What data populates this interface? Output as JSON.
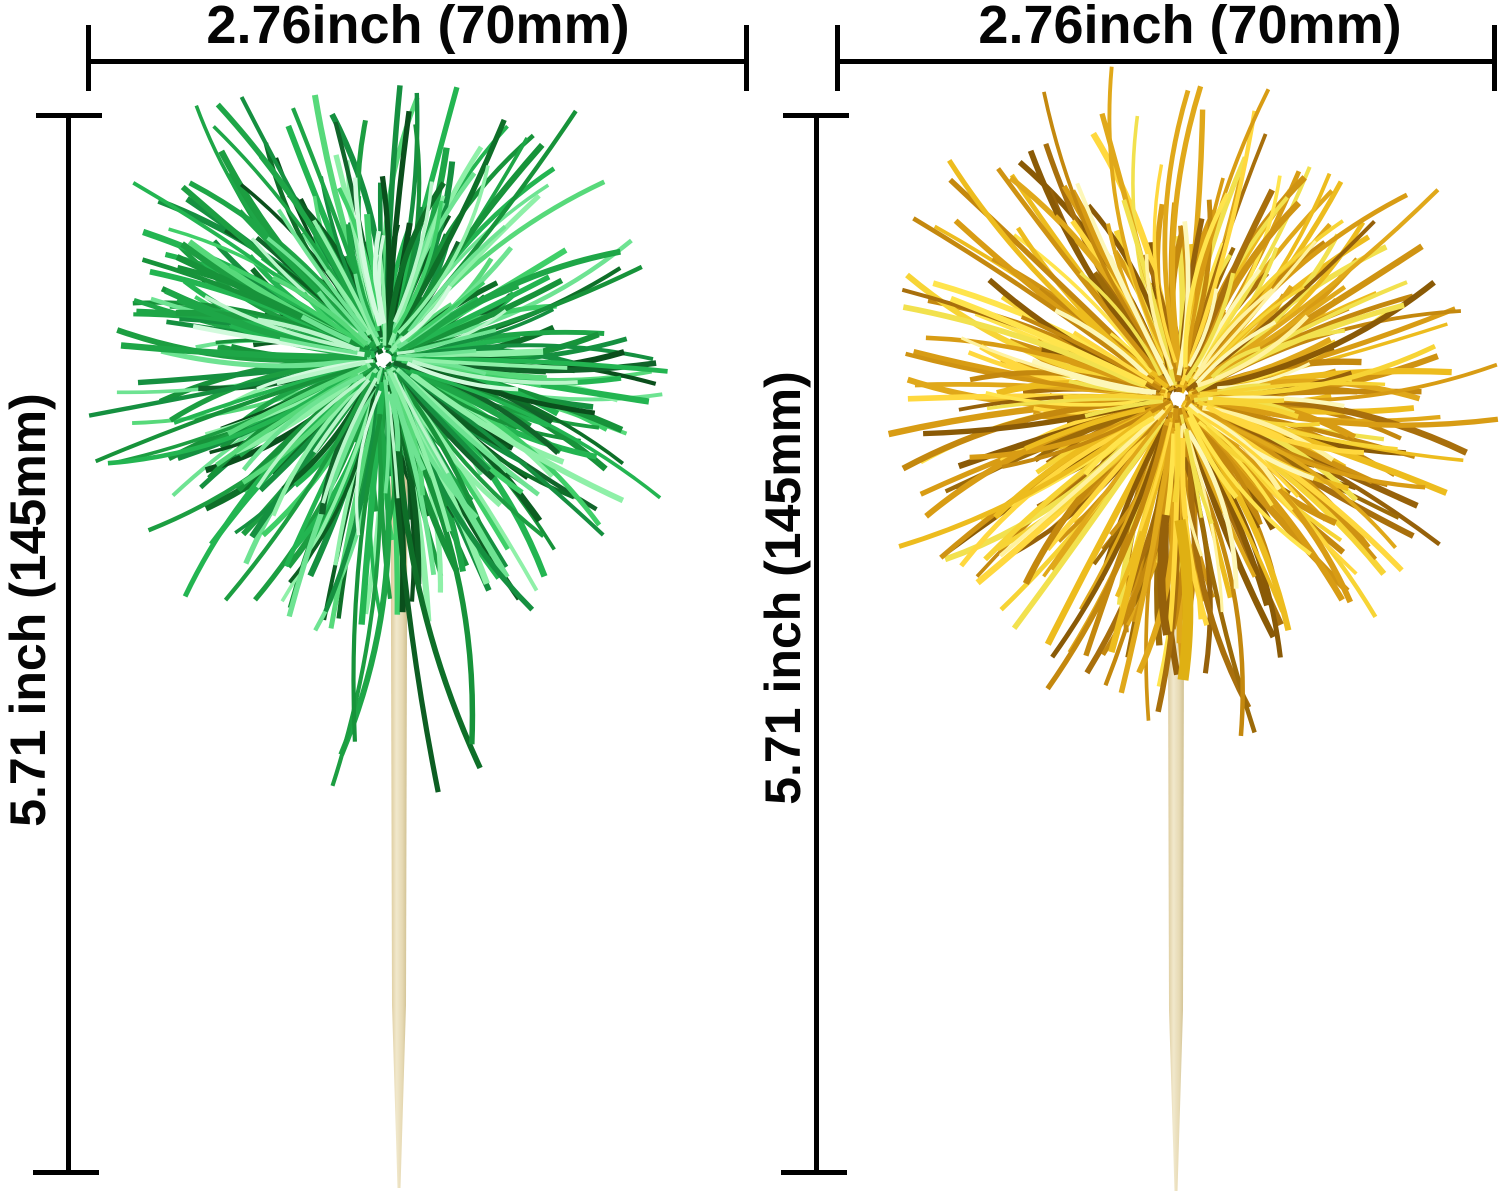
{
  "image": {
    "type": "product-photo",
    "background": "#ffffff",
    "subject": "Two tinsel pom pom bamboo picks (green and gold) with size annotations"
  },
  "annotations": {
    "line_color": "#000000",
    "width_labels": [
      {
        "text": "2.76inch (70mm)"
      },
      {
        "text": "2.76inch (70mm)"
      }
    ],
    "height_labels": [
      {
        "text": "5.71 inch (145mm)"
      },
      {
        "text": "5.71 inch (145mm)"
      }
    ]
  },
  "picks": [
    {
      "name": "green tinsel pick",
      "pom": {
        "colors": {
          "dark": [
            "#0a4f1c",
            "#0c5e22",
            "#0e6f28",
            "#11642a"
          ],
          "mid": [
            "#17933a",
            "#1ea647",
            "#23b551",
            "#159040",
            "#1c9e41"
          ],
          "light": [
            "#3fcf68",
            "#57d97a",
            "#6ee392",
            "#8ff0a8"
          ],
          "glint": [
            "#b9f5c9",
            "#d2fadd"
          ]
        }
      },
      "stick": {
        "colors": [
          "#dcc999",
          "#f1e8cc",
          "#e6d9b3",
          "#cdbd8d"
        ]
      }
    },
    {
      "name": "gold tinsel pick",
      "pom": {
        "colors": {
          "dark": [
            "#8a5a06",
            "#96610a",
            "#a86f0c",
            "#9c6a08"
          ],
          "mid": [
            "#c4880e",
            "#cf9312",
            "#e0a81a",
            "#edbc1e",
            "#d89c14"
          ],
          "light": [
            "#f7d435",
            "#ffe44c",
            "#f2e14e",
            "#ffd83e"
          ],
          "glint": [
            "#fff2a0",
            "#fdf7b8"
          ]
        },
        "ribbon_color": "#dfb013"
      },
      "stick": {
        "colors": [
          "#dcc999",
          "#f1e8cc",
          "#e6d9b3",
          "#cdbd8d"
        ]
      }
    }
  ]
}
